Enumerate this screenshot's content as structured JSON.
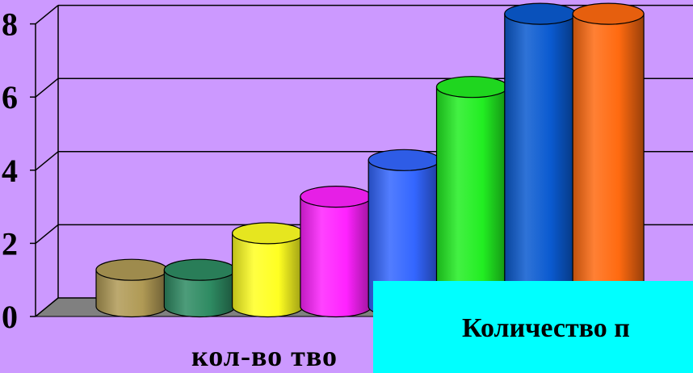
{
  "chart_data": {
    "type": "bar",
    "categories": [
      "",
      "",
      "",
      "",
      "",
      "",
      "",
      ""
    ],
    "values": [
      1,
      1,
      2,
      3,
      4,
      6,
      8,
      8
    ],
    "bar_colors": [
      "#b09a55",
      "#2e8b62",
      "#ffff22",
      "#ff22ff",
      "#3366ff",
      "#22ee22",
      "#0a5ad0",
      "#ff6a10"
    ],
    "y_ticks": [
      "0",
      "2",
      "4",
      "6",
      "8"
    ],
    "ylim": [
      0,
      8
    ],
    "xlabel": "кол-во тво",
    "grid": true,
    "background": "#cc99ff"
  },
  "overlay": {
    "text": "Количество п",
    "background": "#00ffff"
  }
}
